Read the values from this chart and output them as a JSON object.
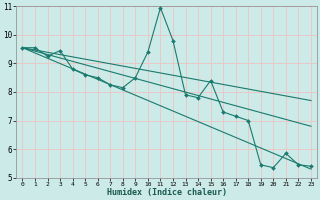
{
  "xlabel": "Humidex (Indice chaleur)",
  "bg_color": "#cceae7",
  "line_color": "#1a7a6e",
  "grid_color": "#e8c8c8",
  "xlim": [
    -0.5,
    23.5
  ],
  "ylim": [
    5,
    11
  ],
  "xticks": [
    0,
    1,
    2,
    3,
    4,
    5,
    6,
    7,
    8,
    9,
    10,
    11,
    12,
    13,
    14,
    15,
    16,
    17,
    18,
    19,
    20,
    21,
    22,
    23
  ],
  "yticks": [
    5,
    6,
    7,
    8,
    9,
    10,
    11
  ],
  "data_x": [
    0,
    1,
    2,
    3,
    4,
    5,
    6,
    7,
    8,
    9,
    10,
    11,
    12,
    13,
    14,
    15,
    16,
    17,
    18,
    19,
    20,
    21,
    22,
    23
  ],
  "data_y": [
    9.55,
    9.55,
    9.25,
    9.45,
    8.8,
    8.6,
    8.5,
    8.25,
    8.15,
    8.5,
    9.4,
    10.95,
    9.8,
    7.9,
    7.8,
    8.4,
    7.3,
    7.15,
    7.0,
    5.45,
    5.35,
    5.85,
    5.45,
    5.4
  ],
  "trend1_x": [
    0,
    23
  ],
  "trend1_y": [
    9.55,
    5.3
  ],
  "trend2_x": [
    0,
    23
  ],
  "trend2_y": [
    9.55,
    6.8
  ],
  "trend3_x": [
    0,
    23
  ],
  "trend3_y": [
    9.55,
    7.7
  ]
}
